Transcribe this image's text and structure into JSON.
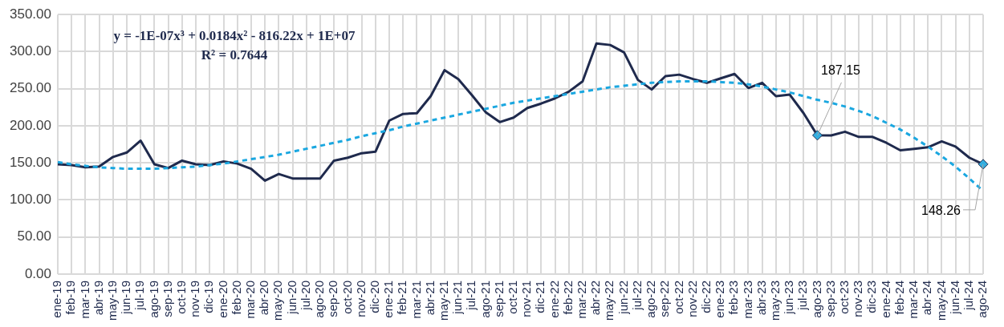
{
  "chart_data": {
    "type": "line",
    "categories": [
      "ene-19",
      "feb-19",
      "mar-19",
      "abr-19",
      "may-19",
      "jun-19",
      "jul-19",
      "ago-19",
      "sep-19",
      "oct-19",
      "nov-19",
      "dic-19",
      "ene-20",
      "feb-20",
      "mar-20",
      "abr-20",
      "may-20",
      "jun-20",
      "jul-20",
      "ago-20",
      "sep-20",
      "oct-20",
      "nov-20",
      "dic-20",
      "ene-21",
      "feb-21",
      "mar-21",
      "abr-21",
      "may-21",
      "jun-21",
      "jul-21",
      "ago-21",
      "sep-21",
      "oct-21",
      "nov-21",
      "dic-21",
      "ene-22",
      "feb-22",
      "mar-22",
      "abr-22",
      "may-22",
      "jun-22",
      "jul-22",
      "ago-22",
      "sep-22",
      "oct-22",
      "nov-22",
      "dic-22",
      "ene-23",
      "feb-23",
      "mar-23",
      "abr-23",
      "may-23",
      "jun-23",
      "jul-23",
      "ago-23",
      "sep-23",
      "oct-23",
      "nov-23",
      "dic-23",
      "ene-24",
      "feb-24",
      "mar-24",
      "abr-24",
      "may-24",
      "jun-24",
      "jul-24",
      "ago-24"
    ],
    "series": [
      {
        "color": "#1f2a4d",
        "values": [
          148,
          147,
          144,
          145,
          158,
          164,
          180,
          148,
          143,
          153,
          148,
          147,
          152,
          149,
          142,
          126,
          135,
          129,
          129,
          129,
          153,
          157,
          163,
          165,
          207,
          216,
          217,
          240,
          275,
          263,
          241,
          218,
          205,
          211,
          224,
          230,
          237,
          246,
          260,
          311,
          309,
          299,
          262,
          249,
          267,
          269,
          263,
          258,
          264,
          270,
          251,
          258,
          240,
          242,
          217,
          187.15,
          187,
          192,
          185,
          185,
          177,
          167,
          169,
          171,
          179,
          172,
          157,
          148.26
        ],
        "value_labels": [
          null,
          null,
          null,
          null,
          null,
          null,
          null,
          null,
          null,
          null,
          null,
          null,
          null,
          null,
          null,
          null,
          null,
          null,
          null,
          null,
          null,
          null,
          null,
          null,
          null,
          null,
          null,
          null,
          null,
          null,
          null,
          null,
          null,
          null,
          null,
          null,
          null,
          null,
          null,
          null,
          null,
          null,
          null,
          null,
          null,
          null,
          null,
          null,
          null,
          null,
          null,
          null,
          null,
          null,
          null,
          "187.15",
          null,
          null,
          null,
          null,
          null,
          null,
          null,
          null,
          null,
          null,
          null,
          "148.26"
        ]
      },
      {
        "type": "line",
        "color": "#1aa7e0",
        "line_style": "dashed",
        "marker": "none",
        "values": [
          151,
          148,
          146,
          144,
          143,
          142,
          142,
          142,
          143,
          144,
          145,
          147,
          149,
          152,
          155,
          158,
          161,
          165,
          169,
          173,
          177,
          181,
          186,
          190,
          194,
          199,
          203,
          207,
          211,
          215,
          219,
          223,
          227,
          231,
          234,
          237,
          240,
          243,
          246,
          249,
          252,
          254,
          256,
          258,
          259,
          260,
          260,
          260,
          259,
          258,
          256,
          253,
          249,
          245,
          240,
          235,
          231,
          226,
          220,
          213,
          204,
          195,
          184,
          172,
          159,
          145,
          129,
          112
        ]
      }
    ],
    "ylim": [
      0,
      350
    ],
    "yticks": [
      {
        "value": 0,
        "label": "0.00"
      },
      {
        "value": 50,
        "label": "50.00"
      },
      {
        "value": 100,
        "label": "100.00"
      },
      {
        "value": 150,
        "label": "150.00"
      },
      {
        "value": 200,
        "label": "200.00"
      },
      {
        "value": 250,
        "label": "250.00"
      },
      {
        "value": 300,
        "label": "300.00"
      },
      {
        "value": 350,
        "label": "350.00"
      }
    ],
    "grid": true,
    "legend": false,
    "annotations": [
      "y = -1E-07x³ + 0.0184x² - 816.22x + 1E+07",
      "R² = 0.7644"
    ]
  }
}
